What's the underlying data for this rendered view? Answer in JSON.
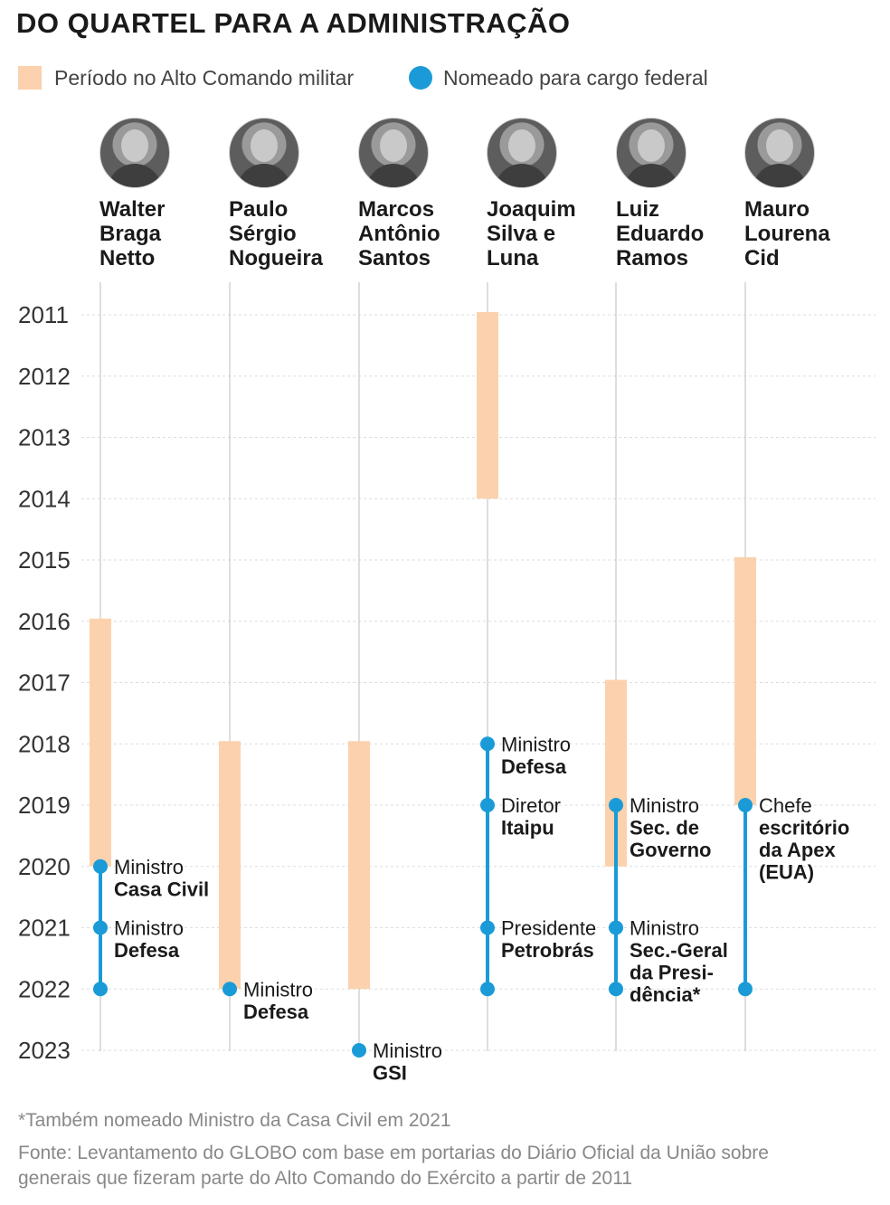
{
  "title": "DO QUARTEL PARA A ADMINISTRAÇÃO",
  "legend": {
    "period_label": "Período no Alto Comando militar",
    "appointment_label": "Nomeado para cargo federal"
  },
  "colors": {
    "period": "#fbd2ad",
    "appointment": "#1a9bd7",
    "grid": "#dddddd",
    "column_line": "#c8c8c8"
  },
  "people": [
    {
      "name_lines": [
        "Walter",
        "Braga",
        "Netto"
      ],
      "icon": "person-photo-icon"
    },
    {
      "name_lines": [
        "Paulo",
        "Sérgio",
        "Nogueira"
      ],
      "icon": "person-photo-icon"
    },
    {
      "name_lines": [
        "Marcos",
        "Antônio",
        "Santos"
      ],
      "icon": "person-photo-icon"
    },
    {
      "name_lines": [
        "Joaquim",
        "Silva e",
        "Luna"
      ],
      "icon": "person-photo-icon"
    },
    {
      "name_lines": [
        "Luiz",
        "Eduardo",
        "Ramos"
      ],
      "icon": "person-photo-icon"
    },
    {
      "name_lines": [
        "Mauro",
        "Lourena",
        "Cid"
      ],
      "icon": "person-photo-icon"
    }
  ],
  "chart_data": {
    "type": "timeline",
    "y_axis": {
      "ticks": [
        "2011",
        "2012",
        "2013",
        "2014",
        "2015",
        "2016",
        "2017",
        "2018",
        "2019",
        "2020",
        "2021",
        "2022",
        "2023"
      ],
      "range": [
        2011,
        2023
      ]
    },
    "series": [
      {
        "person": "Walter Braga Netto",
        "period": [
          2016,
          2020
        ],
        "appointments": [
          {
            "year": 2020,
            "label_lines": [
              {
                "text": "Ministro",
                "bold": false
              },
              {
                "text": "Casa Civil",
                "bold": true
              }
            ]
          },
          {
            "year": 2021,
            "label_lines": [
              {
                "text": "Ministro",
                "bold": false
              },
              {
                "text": "Defesa",
                "bold": true
              }
            ]
          },
          {
            "year": 2022,
            "label_lines": []
          }
        ]
      },
      {
        "person": "Paulo Sérgio Nogueira",
        "period": [
          2018,
          2022
        ],
        "appointments": [
          {
            "year": 2022,
            "label_lines": [
              {
                "text": "Ministro",
                "bold": false
              },
              {
                "text": "Defesa",
                "bold": true
              }
            ]
          }
        ]
      },
      {
        "person": "Marcos Antônio Santos",
        "period": [
          2018,
          2022
        ],
        "appointments": [
          {
            "year": 2023,
            "label_lines": [
              {
                "text": "Ministro",
                "bold": false
              },
              {
                "text": "GSI",
                "bold": true
              }
            ]
          }
        ]
      },
      {
        "person": "Joaquim Silva e Luna",
        "period": [
          2011,
          2014
        ],
        "appointments": [
          {
            "year": 2018,
            "label_lines": [
              {
                "text": "Ministro",
                "bold": false
              },
              {
                "text": "Defesa",
                "bold": true
              }
            ]
          },
          {
            "year": 2019,
            "label_lines": [
              {
                "text": "Diretor",
                "bold": false
              },
              {
                "text": "Itaipu",
                "bold": true
              }
            ]
          },
          {
            "year": 2021,
            "label_lines": [
              {
                "text": "Presidente",
                "bold": false
              },
              {
                "text": "Petrobrás",
                "bold": true
              }
            ]
          },
          {
            "year": 2022,
            "label_lines": []
          }
        ]
      },
      {
        "person": "Luiz Eduardo Ramos",
        "period": [
          2017,
          2020
        ],
        "appointments": [
          {
            "year": 2019,
            "label_lines": [
              {
                "text": "Ministro",
                "bold": false
              },
              {
                "text": "Sec. de",
                "bold": true
              },
              {
                "text": "Governo",
                "bold": true
              }
            ]
          },
          {
            "year": 2021,
            "label_lines": [
              {
                "text": "Ministro",
                "bold": false
              },
              {
                "text": "Sec.-Geral",
                "bold": true
              },
              {
                "text": "da Presi-",
                "bold": true
              },
              {
                "text": "dência*",
                "bold": true
              }
            ]
          },
          {
            "year": 2022,
            "label_lines": []
          }
        ]
      },
      {
        "person": "Mauro Lourena Cid",
        "period": [
          2015,
          2019
        ],
        "appointments": [
          {
            "year": 2019,
            "label_lines": [
              {
                "text": "Chefe",
                "bold": false
              },
              {
                "text": "escritório",
                "bold": true
              },
              {
                "text": "da Apex",
                "bold": true
              },
              {
                "text": "(EUA)",
                "bold": true
              }
            ]
          },
          {
            "year": 2022,
            "label_lines": []
          }
        ]
      }
    ]
  },
  "footnote": "*Também nomeado Ministro da Casa Civil em 2021",
  "source_lines": [
    "Fonte: Levantamento do GLOBO com base em portarias do Diário Oficial da União sobre",
    "generais que fizeram parte do Alto Comando do Exército a partir de 2011"
  ]
}
